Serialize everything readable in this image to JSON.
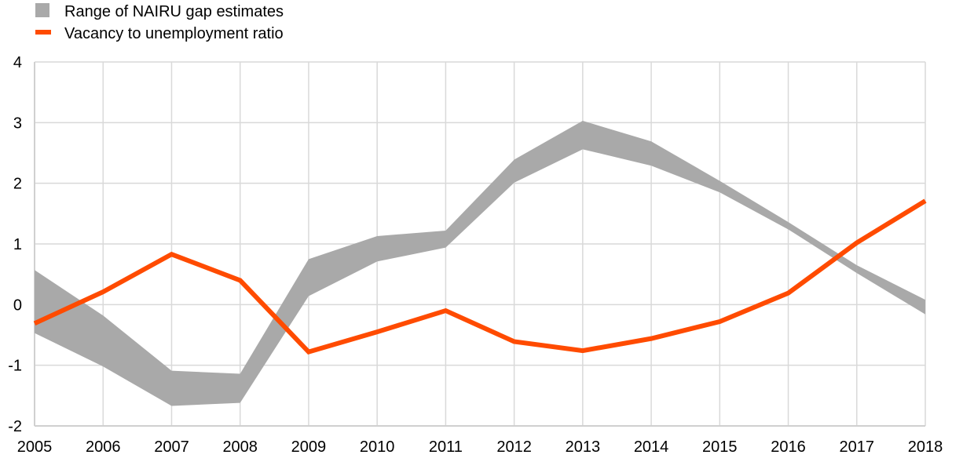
{
  "chart_data": {
    "type": "line",
    "title": "",
    "xlabel": "",
    "ylabel": "",
    "x": [
      2005,
      2006,
      2007,
      2008,
      2009,
      2010,
      2011,
      2012,
      2013,
      2014,
      2015,
      2016,
      2017,
      2018
    ],
    "ylim": [
      -2,
      4
    ],
    "yticks": [
      "4",
      "3",
      "2",
      "1",
      "0",
      "-1",
      "-2"
    ],
    "ytick_values": [
      4,
      3,
      2,
      1,
      0,
      -1,
      -2
    ],
    "xticks": [
      "2005",
      "2006",
      "2007",
      "2008",
      "2009",
      "2010",
      "2011",
      "2012",
      "2013",
      "2014",
      "2015",
      "2016",
      "2017",
      "2018"
    ],
    "grid": true,
    "legend_position": "top-left",
    "series": [
      {
        "name": "Range of NAIRU gap estimates",
        "kind": "band",
        "color": "#a9a9a9",
        "upper": [
          0.57,
          -0.18,
          -1.09,
          -1.14,
          0.75,
          1.13,
          1.22,
          2.39,
          3.03,
          2.69,
          2.04,
          1.36,
          0.65,
          0.08
        ],
        "lower": [
          -0.47,
          -1.02,
          -1.67,
          -1.62,
          0.14,
          0.71,
          0.94,
          2.01,
          2.56,
          2.29,
          1.85,
          1.24,
          0.52,
          -0.16
        ]
      },
      {
        "name": "Vacancy to unemployment ratio",
        "kind": "line",
        "color": "#ff4b00",
        "values": [
          -0.31,
          0.21,
          0.83,
          0.4,
          -0.78,
          -0.45,
          -0.1,
          -0.61,
          -0.76,
          -0.56,
          -0.28,
          0.19,
          1.02,
          1.71
        ]
      }
    ]
  }
}
